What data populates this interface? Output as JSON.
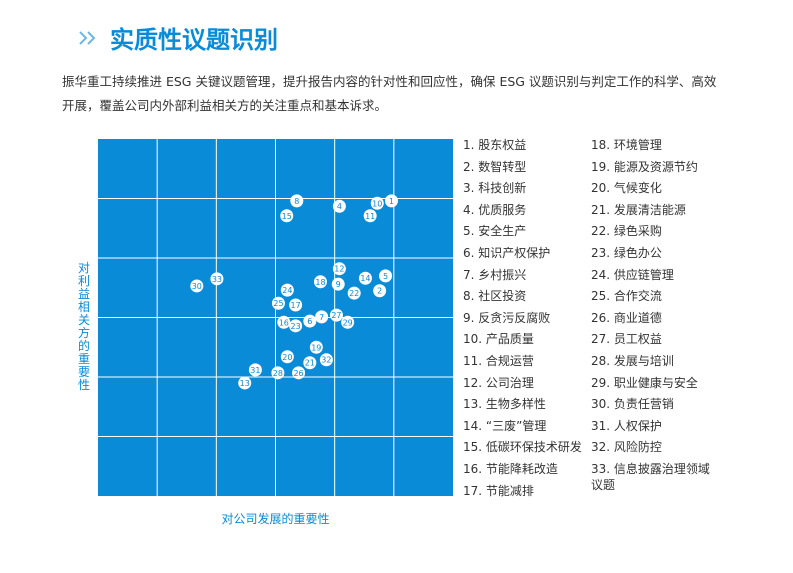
{
  "header": {
    "title": "实质性议题识别",
    "intro": "振华重工持续推进 ESG 关键议题管理，提升报告内容的针对性和回应性，确保 ESG 议题识别与判定工作的科学、高效开展，覆盖公司内外部利益相关方的关注重点和基本诉求。"
  },
  "chart_data": {
    "type": "scatter",
    "xlabel": "对公司发展的重要性",
    "ylabel": "对利益相关方的重要性",
    "xlim": [
      0,
      6
    ],
    "ylim": [
      0,
      6
    ],
    "grid": true,
    "color": "#0a8bd8",
    "points": [
      {
        "label": "1",
        "x": 4.96,
        "y": 4.96
      },
      {
        "label": "2",
        "x": 4.76,
        "y": 3.45
      },
      {
        "label": "4",
        "x": 4.08,
        "y": 4.87
      },
      {
        "label": "5",
        "x": 4.86,
        "y": 3.7
      },
      {
        "label": "6",
        "x": 3.58,
        "y": 2.94
      },
      {
        "label": "7",
        "x": 3.78,
        "y": 3.01
      },
      {
        "label": "8",
        "x": 3.36,
        "y": 4.96
      },
      {
        "label": "9",
        "x": 4.06,
        "y": 3.56
      },
      {
        "label": "10",
        "x": 4.72,
        "y": 4.92
      },
      {
        "label": "11",
        "x": 4.6,
        "y": 4.71
      },
      {
        "label": "12",
        "x": 4.08,
        "y": 3.82
      },
      {
        "label": "13",
        "x": 2.48,
        "y": 1.9
      },
      {
        "label": "14",
        "x": 4.52,
        "y": 3.66
      },
      {
        "label": "15",
        "x": 3.19,
        "y": 4.71
      },
      {
        "label": "16",
        "x": 3.14,
        "y": 2.92
      },
      {
        "label": "17",
        "x": 3.34,
        "y": 3.21
      },
      {
        "label": "18",
        "x": 3.76,
        "y": 3.6
      },
      {
        "label": "19",
        "x": 3.69,
        "y": 2.5
      },
      {
        "label": "20",
        "x": 3.2,
        "y": 2.34
      },
      {
        "label": "21",
        "x": 3.58,
        "y": 2.24
      },
      {
        "label": "22",
        "x": 4.33,
        "y": 3.41
      },
      {
        "label": "23",
        "x": 3.34,
        "y": 2.86
      },
      {
        "label": "24",
        "x": 3.2,
        "y": 3.46
      },
      {
        "label": "25",
        "x": 3.05,
        "y": 3.24
      },
      {
        "label": "26",
        "x": 3.39,
        "y": 2.07
      },
      {
        "label": "27",
        "x": 4.03,
        "y": 3.04
      },
      {
        "label": "28",
        "x": 3.04,
        "y": 2.07
      },
      {
        "label": "29",
        "x": 4.22,
        "y": 2.92
      },
      {
        "label": "30",
        "x": 1.67,
        "y": 3.53
      },
      {
        "label": "31",
        "x": 2.66,
        "y": 2.12
      },
      {
        "label": "32",
        "x": 3.86,
        "y": 2.29
      },
      {
        "label": "33",
        "x": 2.01,
        "y": 3.65
      }
    ],
    "legend": [
      "1. 股东权益",
      "2. 数智转型",
      "3. 科技创新",
      "4. 优质服务",
      "5. 安全生产",
      "6. 知识产权保护",
      "7. 乡村振兴",
      "8. 社区投资",
      "9. 反贪污反腐败",
      "10. 产品质量",
      "11. 合规运营",
      "12. 公司治理",
      "13. 生物多样性",
      "14. “三废”管理",
      "15. 低碳环保技术研发",
      "16. 节能降耗改造",
      "17. 节能减排",
      "18. 环境管理",
      "19. 能源及资源节约",
      "20. 气候变化",
      "21. 发展清洁能源",
      "22. 绿色采购",
      "23. 绿色办公",
      "24. 供应链管理",
      "25. 合作交流",
      "26. 商业道德",
      "27. 员工权益",
      "28. 发展与培训",
      "29. 职业健康与安全",
      "30. 负责任营销",
      "31. 人权保护",
      "32. 风险防控",
      "33. 信息披露治理领域议题"
    ]
  }
}
